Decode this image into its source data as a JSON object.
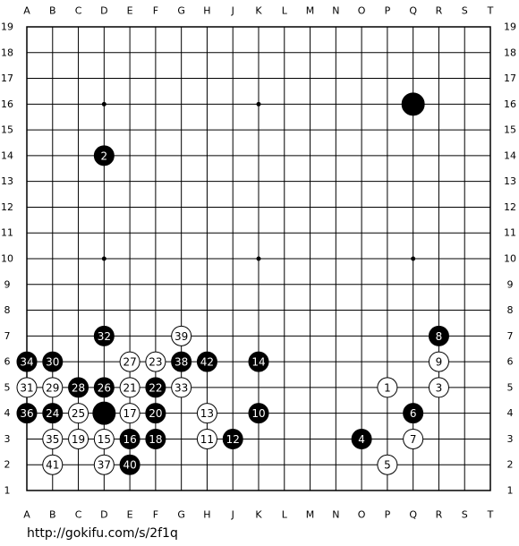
{
  "board": {
    "columns": [
      "A",
      "B",
      "C",
      "D",
      "E",
      "F",
      "G",
      "H",
      "J",
      "K",
      "L",
      "M",
      "N",
      "O",
      "P",
      "Q",
      "R",
      "S",
      "T"
    ],
    "rows": [
      19,
      18,
      17,
      16,
      15,
      14,
      13,
      12,
      11,
      10,
      9,
      8,
      7,
      6,
      5,
      4,
      3,
      2,
      1
    ],
    "stones": [
      {
        "x": 15,
        "y": 16,
        "color": "black"
      },
      {
        "x": 3,
        "y": 14,
        "color": "black",
        "move": 2
      },
      {
        "x": 3,
        "y": 7,
        "color": "black",
        "move": 32
      },
      {
        "x": 6,
        "y": 7,
        "color": "white",
        "move": 39
      },
      {
        "x": 16,
        "y": 7,
        "color": "black",
        "move": 8
      },
      {
        "x": 0,
        "y": 6,
        "color": "black",
        "move": 34
      },
      {
        "x": 1,
        "y": 6,
        "color": "black",
        "move": 30
      },
      {
        "x": 4,
        "y": 6,
        "color": "white",
        "move": 27
      },
      {
        "x": 5,
        "y": 6,
        "color": "white",
        "move": 23
      },
      {
        "x": 6,
        "y": 6,
        "color": "black",
        "move": 38
      },
      {
        "x": 7,
        "y": 6,
        "color": "black",
        "move": 42
      },
      {
        "x": 9,
        "y": 6,
        "color": "black",
        "move": 14
      },
      {
        "x": 16,
        "y": 6,
        "color": "white",
        "move": 9
      },
      {
        "x": 0,
        "y": 5,
        "color": "white",
        "move": 31
      },
      {
        "x": 1,
        "y": 5,
        "color": "white",
        "move": 29
      },
      {
        "x": 2,
        "y": 5,
        "color": "black",
        "move": 28
      },
      {
        "x": 3,
        "y": 5,
        "color": "black",
        "move": 26
      },
      {
        "x": 4,
        "y": 5,
        "color": "white",
        "move": 21
      },
      {
        "x": 5,
        "y": 5,
        "color": "black",
        "move": 22
      },
      {
        "x": 6,
        "y": 5,
        "color": "white",
        "move": 33
      },
      {
        "x": 14,
        "y": 5,
        "color": "white",
        "move": 1
      },
      {
        "x": 16,
        "y": 5,
        "color": "white",
        "move": 3
      },
      {
        "x": 0,
        "y": 4,
        "color": "black",
        "move": 36
      },
      {
        "x": 1,
        "y": 4,
        "color": "black",
        "move": 24
      },
      {
        "x": 2,
        "y": 4,
        "color": "white",
        "move": 25
      },
      {
        "x": 3,
        "y": 4,
        "color": "black"
      },
      {
        "x": 4,
        "y": 4,
        "color": "white",
        "move": 17
      },
      {
        "x": 5,
        "y": 4,
        "color": "black",
        "move": 20
      },
      {
        "x": 7,
        "y": 4,
        "color": "white",
        "move": 13
      },
      {
        "x": 9,
        "y": 4,
        "color": "black",
        "move": 10
      },
      {
        "x": 15,
        "y": 4,
        "color": "black",
        "move": 6
      },
      {
        "x": 1,
        "y": 3,
        "color": "white",
        "move": 35
      },
      {
        "x": 2,
        "y": 3,
        "color": "white",
        "move": 19
      },
      {
        "x": 3,
        "y": 3,
        "color": "white",
        "move": 15
      },
      {
        "x": 4,
        "y": 3,
        "color": "black",
        "move": 16
      },
      {
        "x": 5,
        "y": 3,
        "color": "black",
        "move": 18
      },
      {
        "x": 7,
        "y": 3,
        "color": "white",
        "move": 11
      },
      {
        "x": 8,
        "y": 3,
        "color": "black",
        "move": 12
      },
      {
        "x": 13,
        "y": 3,
        "color": "black",
        "move": 4
      },
      {
        "x": 15,
        "y": 3,
        "color": "white",
        "move": 7
      },
      {
        "x": 1,
        "y": 2,
        "color": "white",
        "move": 41
      },
      {
        "x": 3,
        "y": 2,
        "color": "white",
        "move": 37
      },
      {
        "x": 4,
        "y": 2,
        "color": "black",
        "move": 40
      },
      {
        "x": 14,
        "y": 2,
        "color": "white",
        "move": 5
      }
    ]
  },
  "footer": {
    "url": "http://gokifu.com/s/2f1q"
  }
}
